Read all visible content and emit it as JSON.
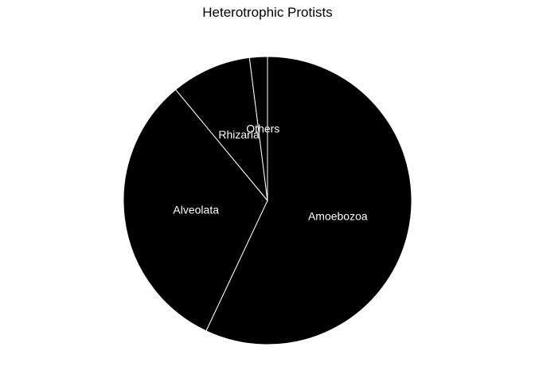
{
  "chart_data": {
    "type": "pie",
    "title": "Heterotrophic Protists",
    "categories": [
      "Amoebozoa",
      "Alveolata",
      "Rhizaria",
      "Others"
    ],
    "values": [
      57,
      32,
      9,
      2
    ],
    "start_angle_deg": 0,
    "direction": "clockwise",
    "colors": {
      "fill": "#000000",
      "edge": "#ffffff",
      "label": "#ffffff",
      "background": "#ffffff"
    }
  }
}
